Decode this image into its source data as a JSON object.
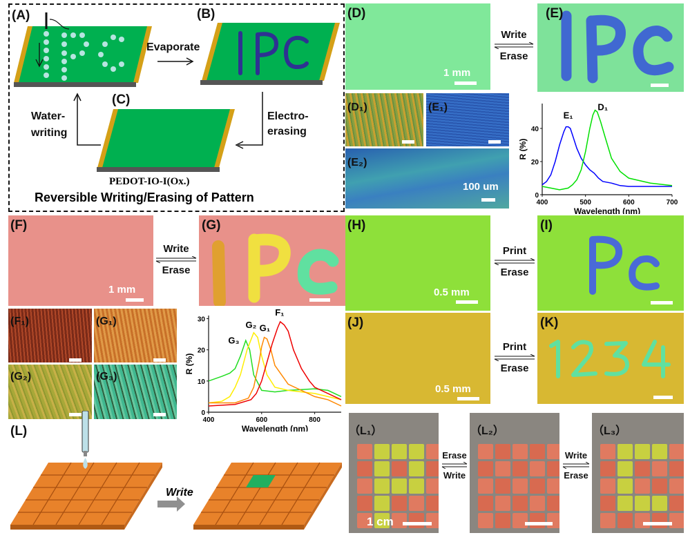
{
  "schematic": {
    "labels": {
      "a": "(A)",
      "b": "(B)",
      "c": "(C)"
    },
    "evaporate": "Evaporate",
    "water_writing_1": "Water-",
    "water_writing_2": "writing",
    "electro_erasing_1": "Electro-",
    "electro_erasing_2": "erasing",
    "material": "PEDOT-IO-I(Ox.)",
    "caption": "Reversible Writing/Erasing of Pattern",
    "pattern_text": "IPC",
    "colors": {
      "film": "#00b050",
      "edge": "#d4a017",
      "base": "#555555",
      "ink": "#2e3192",
      "droplet": "#b7e4e0"
    }
  },
  "panels": {
    "d": {
      "label": "(D)",
      "scale": "1 mm",
      "color": "#80e89a"
    },
    "e": {
      "label": "(E)",
      "pattern": "IPC",
      "color": "#7ee29a",
      "ink": "#3a5bd8"
    },
    "d1": {
      "label": "(D₁)"
    },
    "e1": {
      "label": "(E₁)"
    },
    "e2": {
      "label": "(E₂)",
      "scale": "100 um"
    },
    "f": {
      "label": "(F)",
      "scale": "1 mm",
      "color": "#e8918a"
    },
    "g": {
      "label": "(G)",
      "pattern": "IPC"
    },
    "f1": {
      "label": "(F₁)"
    },
    "g1": {
      "label": "(G₁)"
    },
    "g2": {
      "label": "(G₂)"
    },
    "g3": {
      "label": "(G₃)"
    },
    "h": {
      "label": "(H)",
      "scale": "0.5 mm",
      "color": "#8ee03a"
    },
    "i": {
      "label": "(I)",
      "pattern": "Pc",
      "ink": "#4a6ad8"
    },
    "j": {
      "label": "(J)",
      "scale": "0.5 mm",
      "color": "#d8b832"
    },
    "k": {
      "label": "(K)",
      "pattern": "1234",
      "ink": "#60e0a0"
    },
    "l": {
      "label": "(L)",
      "write": "Write"
    },
    "l1": {
      "label": "（L₁）",
      "scale": "1 cm",
      "tiles": [
        "rYYYr",
        "rYrYr",
        "rYYYr",
        "rYrrr",
        "rYrrr"
      ]
    },
    "l2": {
      "label": "（L₂）",
      "tiles": [
        "rrrrr",
        "rrrrr",
        "rrrrr",
        "rrrrr",
        "rrrrr"
      ]
    },
    "l3": {
      "label": "（L₃）",
      "tiles": [
        "rYYYr",
        "rYrrr",
        "rYrrr",
        "rYYYr",
        "rrrrr"
      ]
    }
  },
  "arrows": {
    "de": {
      "top": "Write",
      "bottom": "Erase"
    },
    "fg": {
      "top": "Write",
      "bottom": "Erase"
    },
    "hi": {
      "top": "Print",
      "bottom": "Erase"
    },
    "jk": {
      "top": "Print",
      "bottom": "Erase"
    },
    "l12": {
      "top": "Erase",
      "bottom": "Write"
    },
    "l23": {
      "top": "Write",
      "bottom": "Erase"
    }
  },
  "chart_data": [
    {
      "type": "line",
      "xlabel": "Wavelength (nm)",
      "ylabel": "R (%)",
      "xlim": [
        400,
        700
      ],
      "ylim": [
        0,
        55
      ],
      "xticks": [
        400,
        500,
        600,
        700
      ],
      "yticks": [
        0,
        20,
        40
      ],
      "series": [
        {
          "name": "E₁",
          "color": "#0000ff",
          "label_at": [
            460,
            46
          ],
          "x": [
            400,
            410,
            420,
            430,
            440,
            450,
            455,
            460,
            465,
            470,
            480,
            490,
            500,
            510,
            520,
            530,
            540,
            560,
            580,
            600,
            650,
            700
          ],
          "y": [
            6,
            8,
            12,
            20,
            30,
            38,
            41,
            41,
            40,
            36,
            28,
            22,
            18,
            15,
            13,
            10,
            8,
            7,
            5.5,
            5,
            5,
            5
          ]
        },
        {
          "name": "D₁",
          "color": "#00e000",
          "label_at": [
            540,
            51
          ],
          "x": [
            400,
            420,
            440,
            460,
            470,
            480,
            490,
            500,
            510,
            517,
            522,
            527,
            535,
            545,
            560,
            580,
            600,
            650,
            700
          ],
          "y": [
            5,
            4,
            3,
            4,
            6,
            9,
            15,
            26,
            40,
            48,
            51,
            50,
            44,
            35,
            22,
            14,
            10,
            7,
            5.5
          ]
        }
      ]
    },
    {
      "type": "line",
      "xlabel": "Wavelength (nm)",
      "ylabel": "R (%)",
      "xlim": [
        400,
        900
      ],
      "ylim": [
        0,
        31
      ],
      "xticks": [
        400,
        600,
        800
      ],
      "yticks": [
        0,
        10,
        20,
        30
      ],
      "series": [
        {
          "name": "G₃",
          "color": "#22dd22",
          "label_at": [
            495,
            22
          ],
          "x": [
            400,
            450,
            480,
            500,
            520,
            540,
            555,
            570,
            600,
            650,
            700,
            800,
            850,
            900
          ],
          "y": [
            10,
            11.5,
            12.5,
            14,
            18,
            23,
            20,
            12,
            7,
            6.5,
            7,
            7.5,
            7,
            5
          ]
        },
        {
          "name": "G₂",
          "color": "#ffee00",
          "label_at": [
            560,
            27
          ],
          "x": [
            400,
            450,
            480,
            500,
            520,
            545,
            570,
            585,
            600,
            620,
            650,
            700,
            800,
            900
          ],
          "y": [
            3,
            3.5,
            5,
            8,
            12,
            20,
            25.5,
            24,
            18,
            12,
            8,
            7,
            6,
            4
          ]
        },
        {
          "name": "G₁",
          "color": "#ff8800",
          "label_at": [
            612,
            26
          ],
          "x": [
            400,
            500,
            550,
            570,
            590,
            600,
            610,
            620,
            635,
            650,
            700,
            800,
            850,
            900
          ],
          "y": [
            3,
            3,
            4.5,
            8,
            16,
            21,
            24,
            23.5,
            20,
            15,
            9,
            5,
            4,
            2
          ]
        },
        {
          "name": "F₁",
          "color": "#ee0000",
          "label_at": [
            668,
            31
          ],
          "x": [
            400,
            500,
            560,
            580,
            600,
            620,
            640,
            660,
            670,
            685,
            700,
            720,
            750,
            780,
            800,
            850,
            900
          ],
          "y": [
            2,
            2.5,
            4,
            6,
            10,
            16,
            22,
            27,
            29,
            28,
            26,
            20,
            14,
            10,
            8,
            6,
            4
          ]
        }
      ]
    }
  ]
}
